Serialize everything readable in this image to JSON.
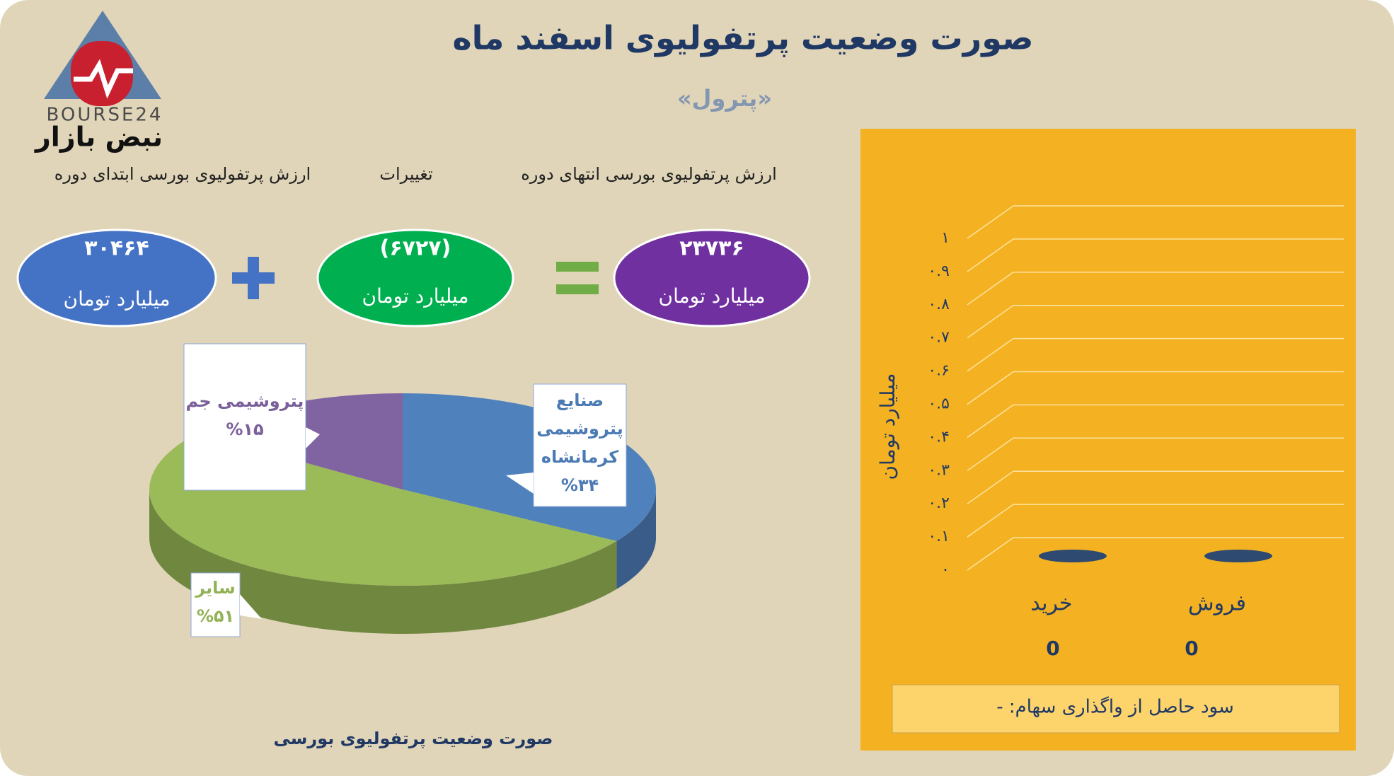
{
  "header": {
    "title": "صورت وضعیت پرتفولیوی اسفند ماه",
    "subtitle": "«پترول»"
  },
  "logo": {
    "brand": "BOURSE24",
    "name": "نبض بازار"
  },
  "equation": {
    "start": {
      "label": "ارزش پرتفولیوی بورسی ابتدای دوره",
      "value": "۳۰۴۶۴",
      "unit": "میلیارد تومان"
    },
    "change": {
      "label": "تغییرات",
      "value": "(۶۷۲۷)",
      "unit": "میلیارد تومان"
    },
    "end": {
      "label": "ارزش پرتفولیوی بورسی انتهای دوره",
      "value": "۲۳۷۳۶",
      "unit": "میلیارد تومان"
    }
  },
  "chart_data": [
    {
      "type": "pie",
      "title": "صورت وضعیت پرتفولیوی بورسی",
      "categories": [
        "صنایع پتروشیمی کرمانشاه",
        "سایر",
        "پتروشیمی جم"
      ],
      "values": [
        34,
        51,
        15
      ],
      "value_labels": [
        "%۳۴",
        "%۵۱",
        "%۱۵"
      ],
      "colors": [
        "#4f81bd",
        "#9bbb59",
        "#8064a2"
      ]
    },
    {
      "type": "bar",
      "ylabel": "میلیارد تومان",
      "categories": [
        "خرید",
        "فروش"
      ],
      "values": [
        0,
        0
      ],
      "color": "#2e4a70",
      "ylim": [
        0,
        1
      ],
      "grid": true,
      "yticks": [
        {
          "value": 0,
          "label": "۰"
        },
        {
          "value": 0.1,
          "label": "۰.۱"
        },
        {
          "value": 0.2,
          "label": "۰.۲"
        },
        {
          "value": 0.3,
          "label": "۰.۳"
        },
        {
          "value": 0.4,
          "label": "۰.۴"
        },
        {
          "value": 0.5,
          "label": "۰.۵"
        },
        {
          "value": 0.6,
          "label": "۰.۶"
        },
        {
          "value": 0.7,
          "label": "۰.۷"
        },
        {
          "value": 0.8,
          "label": "۰.۸"
        },
        {
          "value": 0.9,
          "label": "۰.۹"
        },
        {
          "value": 1,
          "label": "۱"
        }
      ],
      "note": "سود حاصل از واگذاری سهام: -"
    }
  ]
}
